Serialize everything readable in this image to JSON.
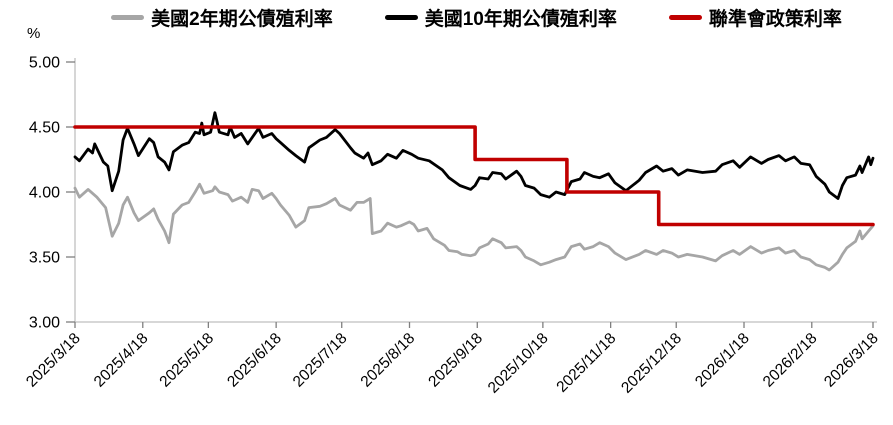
{
  "chart_data": {
    "type": "line",
    "title": "",
    "ylabel": "%",
    "xlabel": "",
    "grid": false,
    "legend_position": "top",
    "ylim": [
      3.0,
      5.0
    ],
    "ytick_values": [
      5.0,
      4.5,
      4.0,
      3.5,
      3.0
    ],
    "ytick_labels": [
      "5.00",
      "4.50",
      "4.00",
      "3.50",
      "3.00"
    ],
    "x_range": [
      "2025/3/18",
      "2026/3/18"
    ],
    "xtick_labels": [
      "2025/3/18",
      "2025/4/18",
      "2025/5/18",
      "2025/6/18",
      "2025/7/18",
      "2025/8/18",
      "2025/9/18",
      "2025/10/18",
      "2025/11/18",
      "2025/12/18",
      "2026/1/18",
      "2026/2/18",
      "2026/3/18"
    ],
    "series": [
      {
        "id": "us-2y-yield",
        "name": "美國2年期公債殖利率",
        "color": "#A6A6A6",
        "line_width": 2.8,
        "points": [
          [
            "2025/3/18",
            4.03
          ],
          [
            "2025/3/20",
            3.96
          ],
          [
            "2025/3/24",
            4.02
          ],
          [
            "2025/3/26",
            3.99
          ],
          [
            "2025/3/28",
            3.96
          ],
          [
            "2025/4/1",
            3.88
          ],
          [
            "2025/4/4",
            3.66
          ],
          [
            "2025/4/7",
            3.76
          ],
          [
            "2025/4/9",
            3.9
          ],
          [
            "2025/4/11",
            3.96
          ],
          [
            "2025/4/14",
            3.84
          ],
          [
            "2025/4/16",
            3.78
          ],
          [
            "2025/4/21",
            3.84
          ],
          [
            "2025/4/23",
            3.87
          ],
          [
            "2025/4/25",
            3.79
          ],
          [
            "2025/4/28",
            3.7
          ],
          [
            "2025/4/30",
            3.61
          ],
          [
            "2025/5/2",
            3.83
          ],
          [
            "2025/5/6",
            3.9
          ],
          [
            "2025/5/9",
            3.92
          ],
          [
            "2025/5/12",
            4.0
          ],
          [
            "2025/5/14",
            4.06
          ],
          [
            "2025/5/16",
            3.99
          ],
          [
            "2025/5/20",
            4.01
          ],
          [
            "2025/5/21",
            4.04
          ],
          [
            "2025/5/23",
            4.0
          ],
          [
            "2025/5/27",
            3.98
          ],
          [
            "2025/5/29",
            3.93
          ],
          [
            "2025/6/2",
            3.96
          ],
          [
            "2025/6/5",
            3.92
          ],
          [
            "2025/6/7",
            4.02
          ],
          [
            "2025/6/10",
            4.01
          ],
          [
            "2025/6/12",
            3.95
          ],
          [
            "2025/6/16",
            3.99
          ],
          [
            "2025/6/18",
            3.95
          ],
          [
            "2025/6/20",
            3.9
          ],
          [
            "2025/6/24",
            3.82
          ],
          [
            "2025/6/27",
            3.73
          ],
          [
            "2025/7/1",
            3.78
          ],
          [
            "2025/7/3",
            3.88
          ],
          [
            "2025/7/8",
            3.89
          ],
          [
            "2025/7/11",
            3.91
          ],
          [
            "2025/7/15",
            3.95
          ],
          [
            "2025/7/17",
            3.9
          ],
          [
            "2025/7/22",
            3.86
          ],
          [
            "2025/7/25",
            3.92
          ],
          [
            "2025/7/28",
            3.92
          ],
          [
            "2025/7/31",
            3.95
          ],
          [
            "2025/8/1",
            3.68
          ],
          [
            "2025/8/5",
            3.7
          ],
          [
            "2025/8/8",
            3.76
          ],
          [
            "2025/8/12",
            3.73
          ],
          [
            "2025/8/14",
            3.74
          ],
          [
            "2025/8/18",
            3.77
          ],
          [
            "2025/8/20",
            3.75
          ],
          [
            "2025/8/22",
            3.7
          ],
          [
            "2025/8/26",
            3.72
          ],
          [
            "2025/8/29",
            3.64
          ],
          [
            "2025/9/3",
            3.59
          ],
          [
            "2025/9/5",
            3.55
          ],
          [
            "2025/9/9",
            3.54
          ],
          [
            "2025/9/11",
            3.52
          ],
          [
            "2025/9/15",
            3.51
          ],
          [
            "2025/9/17",
            3.52
          ],
          [
            "2025/9/19",
            3.57
          ],
          [
            "2025/9/23",
            3.6
          ],
          [
            "2025/9/25",
            3.64
          ],
          [
            "2025/9/29",
            3.61
          ],
          [
            "2025/10/1",
            3.57
          ],
          [
            "2025/10/6",
            3.58
          ],
          [
            "2025/10/8",
            3.55
          ],
          [
            "2025/10/10",
            3.5
          ],
          [
            "2025/10/14",
            3.47
          ],
          [
            "2025/10/17",
            3.44
          ],
          [
            "2025/10/21",
            3.46
          ],
          [
            "2025/10/24",
            3.48
          ],
          [
            "2025/10/28",
            3.5
          ],
          [
            "2025/10/31",
            3.58
          ],
          [
            "2025/11/4",
            3.6
          ],
          [
            "2025/11/6",
            3.56
          ],
          [
            "2025/11/10",
            3.58
          ],
          [
            "2025/11/13",
            3.61
          ],
          [
            "2025/11/17",
            3.58
          ],
          [
            "2025/11/20",
            3.53
          ],
          [
            "2025/11/25",
            3.48
          ],
          [
            "2025/12/1",
            3.52
          ],
          [
            "2025/12/4",
            3.55
          ],
          [
            "2025/12/9",
            3.52
          ],
          [
            "2025/12/12",
            3.55
          ],
          [
            "2025/12/16",
            3.53
          ],
          [
            "2025/12/19",
            3.5
          ],
          [
            "2025/12/23",
            3.52
          ],
          [
            "2025/12/30",
            3.5
          ],
          [
            "2026/1/5",
            3.47
          ],
          [
            "2026/1/8",
            3.51
          ],
          [
            "2026/1/13",
            3.55
          ],
          [
            "2026/1/16",
            3.52
          ],
          [
            "2026/1/21",
            3.58
          ],
          [
            "2026/1/26",
            3.53
          ],
          [
            "2026/1/29",
            3.55
          ],
          [
            "2026/2/3",
            3.57
          ],
          [
            "2026/2/6",
            3.53
          ],
          [
            "2026/2/10",
            3.55
          ],
          [
            "2026/2/13",
            3.5
          ],
          [
            "2026/2/17",
            3.48
          ],
          [
            "2026/2/20",
            3.44
          ],
          [
            "2026/2/24",
            3.42
          ],
          [
            "2026/2/26",
            3.4
          ],
          [
            "2026/3/2",
            3.46
          ],
          [
            "2026/3/4",
            3.52
          ],
          [
            "2026/3/6",
            3.57
          ],
          [
            "2026/3/10",
            3.62
          ],
          [
            "2026/3/12",
            3.7
          ],
          [
            "2026/3/13",
            3.64
          ],
          [
            "2026/3/16",
            3.7
          ],
          [
            "2026/3/18",
            3.74
          ]
        ]
      },
      {
        "id": "us-10y-yield",
        "name": "美國10年期公債殖利率",
        "color": "#000000",
        "line_width": 2.8,
        "points": [
          [
            "2025/3/18",
            4.27
          ],
          [
            "2025/3/20",
            4.24
          ],
          [
            "2025/3/24",
            4.33
          ],
          [
            "2025/3/26",
            4.3
          ],
          [
            "2025/3/27",
            4.37
          ],
          [
            "2025/3/31",
            4.23
          ],
          [
            "2025/4/2",
            4.2
          ],
          [
            "2025/4/4",
            4.01
          ],
          [
            "2025/4/7",
            4.16
          ],
          [
            "2025/4/9",
            4.4
          ],
          [
            "2025/4/11",
            4.49
          ],
          [
            "2025/4/14",
            4.37
          ],
          [
            "2025/4/16",
            4.28
          ],
          [
            "2025/4/21",
            4.41
          ],
          [
            "2025/4/23",
            4.38
          ],
          [
            "2025/4/25",
            4.27
          ],
          [
            "2025/4/28",
            4.23
          ],
          [
            "2025/4/30",
            4.17
          ],
          [
            "2025/5/2",
            4.31
          ],
          [
            "2025/5/6",
            4.36
          ],
          [
            "2025/5/9",
            4.38
          ],
          [
            "2025/5/12",
            4.46
          ],
          [
            "2025/5/14",
            4.45
          ],
          [
            "2025/5/15",
            4.53
          ],
          [
            "2025/5/16",
            4.44
          ],
          [
            "2025/5/19",
            4.46
          ],
          [
            "2025/5/21",
            4.61
          ],
          [
            "2025/5/22",
            4.54
          ],
          [
            "2025/5/23",
            4.46
          ],
          [
            "2025/5/27",
            4.44
          ],
          [
            "2025/5/28",
            4.5
          ],
          [
            "2025/5/30",
            4.42
          ],
          [
            "2025/6/2",
            4.45
          ],
          [
            "2025/6/5",
            4.37
          ],
          [
            "2025/6/10",
            4.49
          ],
          [
            "2025/6/12",
            4.42
          ],
          [
            "2025/6/16",
            4.45
          ],
          [
            "2025/6/18",
            4.41
          ],
          [
            "2025/6/20",
            4.38
          ],
          [
            "2025/6/24",
            4.32
          ],
          [
            "2025/6/27",
            4.28
          ],
          [
            "2025/7/1",
            4.23
          ],
          [
            "2025/7/3",
            4.34
          ],
          [
            "2025/7/8",
            4.4
          ],
          [
            "2025/7/11",
            4.42
          ],
          [
            "2025/7/15",
            4.48
          ],
          [
            "2025/7/17",
            4.45
          ],
          [
            "2025/7/22",
            4.34
          ],
          [
            "2025/7/24",
            4.3
          ],
          [
            "2025/7/28",
            4.26
          ],
          [
            "2025/7/30",
            4.3
          ],
          [
            "2025/8/1",
            4.21
          ],
          [
            "2025/8/5",
            4.24
          ],
          [
            "2025/8/8",
            4.29
          ],
          [
            "2025/8/12",
            4.26
          ],
          [
            "2025/8/15",
            4.32
          ],
          [
            "2025/8/19",
            4.29
          ],
          [
            "2025/8/22",
            4.26
          ],
          [
            "2025/8/27",
            4.24
          ],
          [
            "2025/9/2",
            4.17
          ],
          [
            "2025/9/5",
            4.11
          ],
          [
            "2025/9/10",
            4.05
          ],
          [
            "2025/9/15",
            4.02
          ],
          [
            "2025/9/17",
            4.05
          ],
          [
            "2025/9/19",
            4.11
          ],
          [
            "2025/9/23",
            4.1
          ],
          [
            "2025/9/25",
            4.15
          ],
          [
            "2025/9/29",
            4.14
          ],
          [
            "2025/10/1",
            4.1
          ],
          [
            "2025/10/6",
            4.16
          ],
          [
            "2025/10/8",
            4.12
          ],
          [
            "2025/10/10",
            4.05
          ],
          [
            "2025/10/14",
            4.03
          ],
          [
            "2025/10/17",
            3.98
          ],
          [
            "2025/10/21",
            3.96
          ],
          [
            "2025/10/24",
            4.0
          ],
          [
            "2025/10/28",
            3.98
          ],
          [
            "2025/10/31",
            4.08
          ],
          [
            "2025/11/4",
            4.1
          ],
          [
            "2025/11/6",
            4.15
          ],
          [
            "2025/11/10",
            4.12
          ],
          [
            "2025/11/13",
            4.11
          ],
          [
            "2025/11/17",
            4.14
          ],
          [
            "2025/11/20",
            4.07
          ],
          [
            "2025/11/25",
            4.01
          ],
          [
            "2025/12/1",
            4.09
          ],
          [
            "2025/12/4",
            4.15
          ],
          [
            "2025/12/9",
            4.2
          ],
          [
            "2025/12/12",
            4.16
          ],
          [
            "2025/12/16",
            4.18
          ],
          [
            "2025/12/19",
            4.13
          ],
          [
            "2025/12/23",
            4.17
          ],
          [
            "2025/12/30",
            4.15
          ],
          [
            "2026/1/5",
            4.16
          ],
          [
            "2026/1/8",
            4.21
          ],
          [
            "2026/1/13",
            4.24
          ],
          [
            "2026/1/16",
            4.19
          ],
          [
            "2026/1/21",
            4.27
          ],
          [
            "2026/1/26",
            4.22
          ],
          [
            "2026/1/29",
            4.25
          ],
          [
            "2026/2/3",
            4.28
          ],
          [
            "2026/2/6",
            4.24
          ],
          [
            "2026/2/10",
            4.27
          ],
          [
            "2026/2/13",
            4.22
          ],
          [
            "2026/2/17",
            4.21
          ],
          [
            "2026/2/20",
            4.12
          ],
          [
            "2026/2/24",
            4.06
          ],
          [
            "2026/2/26",
            4.0
          ],
          [
            "2026/3/2",
            3.95
          ],
          [
            "2026/3/4",
            4.05
          ],
          [
            "2026/3/6",
            4.11
          ],
          [
            "2026/3/10",
            4.13
          ],
          [
            "2026/3/12",
            4.2
          ],
          [
            "2026/3/13",
            4.15
          ],
          [
            "2026/3/16",
            4.27
          ],
          [
            "2026/3/17",
            4.21
          ],
          [
            "2026/3/18",
            4.26
          ]
        ]
      },
      {
        "id": "fed-policy-rate",
        "name": "聯準會政策利率",
        "color": "#C00000",
        "line_width": 3.6,
        "points": [
          [
            "2025/3/18",
            4.5
          ],
          [
            "2025/9/17",
            4.5
          ],
          [
            "2025/9/17",
            4.25
          ],
          [
            "2025/10/29",
            4.25
          ],
          [
            "2025/10/29",
            4.0
          ],
          [
            "2025/12/10",
            4.0
          ],
          [
            "2025/12/10",
            3.75
          ],
          [
            "2026/3/18",
            3.75
          ]
        ]
      }
    ]
  }
}
